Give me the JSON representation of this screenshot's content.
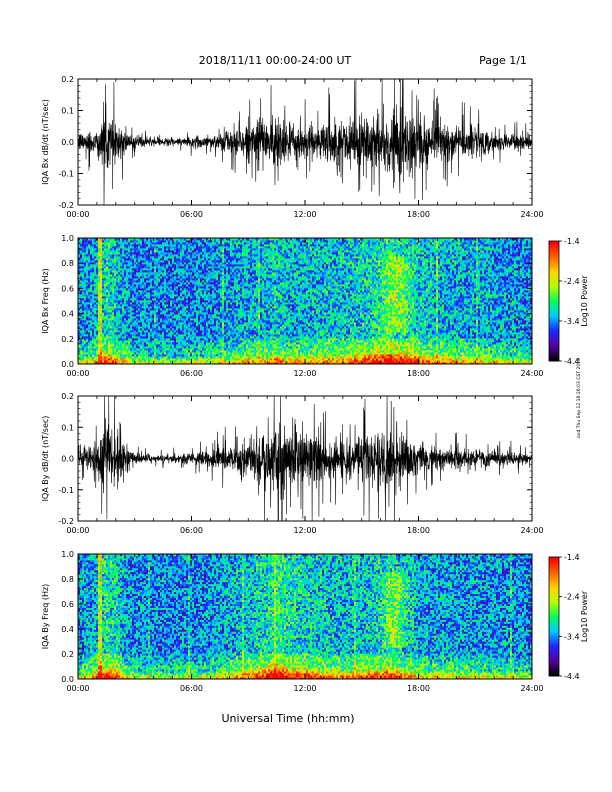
{
  "header": {
    "title": "2018/11/11   00:00-24:00 UT",
    "page": "Page 1/1"
  },
  "footer": {
    "xlabel": "Universal Time (hh:mm)",
    "side_note": "ovd Thu Sep 12 18:26:03 CST 2019"
  },
  "colors": {
    "signal": "#000000",
    "colormap": [
      "#000000",
      "#5a00a0",
      "#1e28ff",
      "#00c8ff",
      "#00ff5a",
      "#b4ff00",
      "#ffd200",
      "#ff6400",
      "#ff0000"
    ]
  },
  "chart_data": [
    {
      "type": "line",
      "name": "bx_dbdt",
      "ylabel": "IQA Bx dB/dt (nT/sec)",
      "xlim": [
        0,
        24
      ],
      "ylim": [
        -0.2,
        0.2
      ],
      "yticks": [
        -0.2,
        -0.1,
        0.0,
        0.1,
        0.2
      ],
      "ytick_labels": [
        "-0.2",
        "-0.1",
        "0.0",
        "0.1",
        "0.2"
      ],
      "xticks": [
        0,
        6,
        12,
        18,
        24
      ],
      "xtick_labels": [
        "00:00",
        "06:00",
        "12:00",
        "18:00",
        "24:00"
      ],
      "envelope": {
        "hour": [
          0,
          1,
          1.5,
          2,
          2.5,
          3,
          4,
          5,
          6,
          7,
          8,
          9,
          10,
          10.5,
          11,
          12,
          13,
          14,
          15,
          16,
          16.5,
          17,
          17.5,
          18,
          19,
          20,
          21,
          22,
          23,
          24
        ],
        "amplitude": [
          0.03,
          0.05,
          0.12,
          0.08,
          0.04,
          0.02,
          0.015,
          0.015,
          0.02,
          0.025,
          0.04,
          0.06,
          0.07,
          0.1,
          0.06,
          0.06,
          0.08,
          0.08,
          0.1,
          0.12,
          0.14,
          0.13,
          0.12,
          0.1,
          0.07,
          0.06,
          0.05,
          0.04,
          0.03,
          0.025
        ]
      }
    },
    {
      "type": "heatmap",
      "name": "bx_spectrogram",
      "ylabel": "IQA Bx Freq (Hz)",
      "xlim": [
        0,
        24
      ],
      "ylim": [
        0.0,
        1.0
      ],
      "yticks": [
        0.0,
        0.2,
        0.4,
        0.6,
        0.8,
        1.0
      ],
      "ytick_labels": [
        "0.0",
        "0.2",
        "0.4",
        "0.6",
        "0.8",
        "1.0"
      ],
      "xticks": [
        0,
        6,
        12,
        18,
        24
      ],
      "xtick_labels": [
        "00:00",
        "06:00",
        "12:00",
        "18:00",
        "24:00"
      ],
      "colorbar": {
        "label": "Log10 Power",
        "range": [
          -4.4,
          -1.4
        ],
        "ticks": [
          -4.4,
          -3.4,
          -2.4,
          -1.4
        ],
        "tick_labels": [
          "-4.4",
          "-3.4",
          "-2.4",
          "-1.4"
        ]
      }
    },
    {
      "type": "line",
      "name": "by_dbdt",
      "ylabel": "IQA By dB/dt (nT/sec)",
      "xlim": [
        0,
        24
      ],
      "ylim": [
        -0.2,
        0.2
      ],
      "yticks": [
        -0.2,
        -0.1,
        0.0,
        0.1,
        0.2
      ],
      "ytick_labels": [
        "-0.2",
        "-0.1",
        "0.0",
        "0.1",
        "0.2"
      ],
      "xticks": [
        0,
        6,
        12,
        18,
        24
      ],
      "xtick_labels": [
        "00:00",
        "06:00",
        "12:00",
        "18:00",
        "24:00"
      ],
      "envelope": {
        "hour": [
          0,
          1,
          1.5,
          2,
          2.5,
          3,
          4,
          5,
          6,
          7,
          8,
          9,
          10,
          10.5,
          11,
          12,
          13,
          14,
          15,
          16,
          16.5,
          17,
          17.5,
          18,
          19,
          20,
          21,
          22,
          23,
          24
        ],
        "amplitude": [
          0.03,
          0.06,
          0.14,
          0.1,
          0.04,
          0.02,
          0.015,
          0.015,
          0.02,
          0.03,
          0.05,
          0.08,
          0.12,
          0.16,
          0.12,
          0.1,
          0.08,
          0.07,
          0.08,
          0.1,
          0.12,
          0.09,
          0.07,
          0.05,
          0.045,
          0.04,
          0.035,
          0.03,
          0.025,
          0.02
        ]
      }
    },
    {
      "type": "heatmap",
      "name": "by_spectrogram",
      "ylabel": "IQA By Freq (Hz)",
      "xlim": [
        0,
        24
      ],
      "ylim": [
        0.0,
        1.0
      ],
      "yticks": [
        0.0,
        0.2,
        0.4,
        0.6,
        0.8,
        1.0
      ],
      "ytick_labels": [
        "0.0",
        "0.2",
        "0.4",
        "0.6",
        "0.8",
        "1.0"
      ],
      "xticks": [
        0,
        6,
        12,
        18,
        24
      ],
      "xtick_labels": [
        "00:00",
        "06:00",
        "12:00",
        "18:00",
        "24:00"
      ],
      "colorbar": {
        "label": "Log10 Power",
        "range": [
          -4.4,
          -1.4
        ],
        "ticks": [
          -4.4,
          -3.4,
          -2.4,
          -1.4
        ],
        "tick_labels": [
          "-4.4",
          "-3.4",
          "-2.4",
          "-1.4"
        ]
      }
    }
  ]
}
